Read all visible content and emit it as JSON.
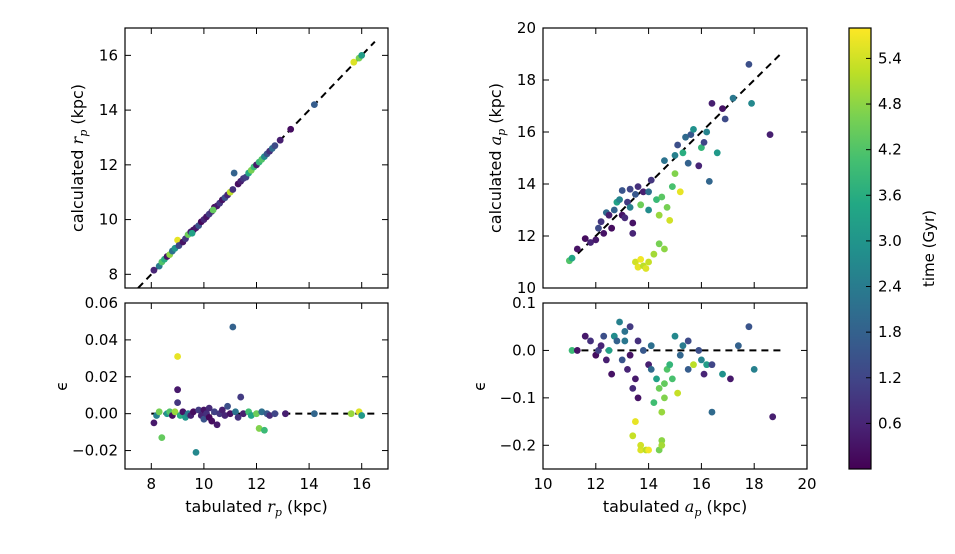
{
  "chart_data": [
    {
      "id": "rp-main",
      "type": "scatter",
      "xlim": [
        7,
        17
      ],
      "ylim": [
        7.5,
        17
      ],
      "xticks": [],
      "yticks": [
        8,
        10,
        12,
        14,
        16
      ],
      "ytick_labels": [
        "8",
        "10",
        "12",
        "14",
        "16"
      ],
      "ylabel_text": "calculated ",
      "ylabel_sym": "r",
      "ylabel_sub": "p",
      "ylabel_unit": " (kpc)",
      "reference_line": {
        "style": "dashed",
        "x": [
          7.5,
          16.5
        ],
        "y": [
          7.5,
          16.5
        ]
      },
      "points": [
        [
          8.1,
          8.15,
          0.6
        ],
        [
          8.3,
          8.3,
          2.4
        ],
        [
          8.4,
          8.45,
          4.2
        ],
        [
          8.5,
          8.55,
          3.6
        ],
        [
          8.6,
          8.65,
          0.3
        ],
        [
          8.7,
          8.72,
          4.8
        ],
        [
          8.8,
          8.85,
          2.1
        ],
        [
          8.9,
          8.95,
          3.0
        ],
        [
          9.0,
          9.25,
          5.6
        ],
        [
          9.05,
          9.05,
          1.2
        ],
        [
          9.2,
          9.18,
          0.3
        ],
        [
          9.3,
          9.3,
          0.9
        ],
        [
          9.4,
          9.45,
          4.5
        ],
        [
          9.5,
          9.55,
          0.5
        ],
        [
          9.6,
          9.62,
          0.2
        ],
        [
          9.7,
          9.7,
          0.4
        ],
        [
          9.8,
          9.78,
          1.5
        ],
        [
          9.9,
          9.92,
          0.1
        ],
        [
          10.0,
          10.0,
          0.6
        ],
        [
          10.1,
          10.1,
          0.3
        ],
        [
          10.2,
          10.2,
          1.0
        ],
        [
          10.3,
          10.3,
          0.7
        ],
        [
          10.4,
          10.45,
          0.2
        ],
        [
          10.5,
          10.5,
          0.4
        ],
        [
          10.6,
          10.6,
          0.9
        ],
        [
          10.7,
          10.72,
          0.3
        ],
        [
          10.8,
          10.8,
          1.4
        ],
        [
          10.9,
          10.9,
          0.6
        ],
        [
          11.0,
          11.0,
          5.2
        ],
        [
          11.1,
          11.1,
          0.8
        ],
        [
          11.15,
          11.7,
          1.8
        ],
        [
          11.3,
          11.3,
          0.2
        ],
        [
          11.4,
          11.4,
          0.5
        ],
        [
          11.5,
          11.5,
          0.9
        ],
        [
          11.6,
          11.55,
          1.1
        ],
        [
          11.7,
          11.7,
          3.5
        ],
        [
          11.8,
          11.8,
          4.6
        ],
        [
          11.9,
          11.92,
          3.9
        ],
        [
          12.0,
          12.0,
          0.4
        ],
        [
          12.1,
          12.1,
          3.8
        ],
        [
          12.2,
          12.2,
          4.2
        ],
        [
          12.3,
          12.3,
          2.7
        ],
        [
          12.4,
          12.4,
          1.5
        ],
        [
          12.5,
          12.5,
          0.8
        ],
        [
          12.6,
          12.6,
          2.0
        ],
        [
          12.7,
          12.7,
          1.3
        ],
        [
          12.9,
          12.9,
          0.5
        ],
        [
          13.3,
          13.3,
          0.2
        ],
        [
          14.2,
          14.2,
          1.7
        ],
        [
          15.7,
          15.75,
          5.5
        ],
        [
          15.9,
          15.9,
          4.6
        ],
        [
          16.0,
          16.0,
          3.2
        ],
        [
          10.35,
          10.35,
          4.4
        ],
        [
          9.55,
          9.5,
          3.3
        ]
      ]
    },
    {
      "id": "rp-resid",
      "type": "scatter",
      "xlim": [
        7,
        17
      ],
      "ylim": [
        -0.03,
        0.06
      ],
      "xticks": [
        8,
        10,
        12,
        14,
        16
      ],
      "xtick_labels": [
        "8",
        "10",
        "12",
        "14",
        "16"
      ],
      "yticks": [
        -0.02,
        0.0,
        0.02,
        0.04,
        0.06
      ],
      "ytick_labels": [
        "−0.02",
        "0.00",
        "0.02",
        "0.04",
        "0.06"
      ],
      "xlabel_text": "tabulated ",
      "xlabel_sym": "r",
      "xlabel_sub": "p",
      "xlabel_unit": " (kpc)",
      "ylabel_sym": "ϵ",
      "reference_line": {
        "style": "dashed",
        "x": [
          8.0,
          16.5
        ],
        "y": [
          0,
          0
        ]
      },
      "points": [
        [
          8.1,
          -0.005,
          0.4
        ],
        [
          8.2,
          -0.001,
          2.5
        ],
        [
          8.3,
          0.001,
          4.6
        ],
        [
          8.4,
          -0.013,
          4.4
        ],
        [
          8.6,
          0.0,
          3.0
        ],
        [
          8.7,
          0.001,
          4.2
        ],
        [
          8.8,
          -0.001,
          0.2
        ],
        [
          8.9,
          0.001,
          4.9
        ],
        [
          9.0,
          0.031,
          5.6
        ],
        [
          9.0,
          0.013,
          0.4
        ],
        [
          9.0,
          0.006,
          0.9
        ],
        [
          9.1,
          -0.001,
          3.6
        ],
        [
          9.2,
          0.001,
          0.3
        ],
        [
          9.3,
          -0.002,
          3.0
        ],
        [
          9.4,
          0.0,
          2.4
        ],
        [
          9.5,
          -0.001,
          0.5
        ],
        [
          9.6,
          0.001,
          0.2
        ],
        [
          9.7,
          -0.021,
          2.7
        ],
        [
          9.8,
          0.002,
          1.0
        ],
        [
          9.9,
          -0.001,
          0.6
        ],
        [
          10.0,
          -0.003,
          1.5
        ],
        [
          10.0,
          0.002,
          0.3
        ],
        [
          10.1,
          0.0,
          0.8
        ],
        [
          10.2,
          -0.002,
          0.1
        ],
        [
          10.2,
          0.003,
          0.7
        ],
        [
          10.3,
          -0.004,
          0.2
        ],
        [
          10.4,
          0.001,
          1.1
        ],
        [
          10.5,
          -0.006,
          0.4
        ],
        [
          10.6,
          0.0,
          0.9
        ],
        [
          10.7,
          0.002,
          0.5
        ],
        [
          10.8,
          -0.001,
          0.6
        ],
        [
          10.9,
          0.004,
          1.4
        ],
        [
          11.0,
          0.0,
          0.3
        ],
        [
          11.1,
          0.047,
          1.8
        ],
        [
          11.2,
          0.001,
          2.2
        ],
        [
          11.3,
          -0.002,
          0.8
        ],
        [
          11.4,
          0.009,
          1.0
        ],
        [
          11.5,
          0.0,
          0.5
        ],
        [
          11.7,
          0.001,
          4.0
        ],
        [
          11.8,
          -0.001,
          3.4
        ],
        [
          12.0,
          0.0,
          4.5
        ],
        [
          12.1,
          -0.008,
          4.7
        ],
        [
          12.2,
          0.001,
          2.1
        ],
        [
          12.3,
          -0.009,
          3.9
        ],
        [
          12.4,
          0.0,
          1.6
        ],
        [
          12.5,
          -0.001,
          0.7
        ],
        [
          12.7,
          0.0,
          1.2
        ],
        [
          13.1,
          0.0,
          0.5
        ],
        [
          14.2,
          0.0,
          1.9
        ],
        [
          15.6,
          0.0,
          4.9
        ],
        [
          15.9,
          0.001,
          5.5
        ],
        [
          16.0,
          -0.001,
          3.1
        ]
      ]
    },
    {
      "id": "ap-main",
      "type": "scatter",
      "xlim": [
        10,
        20
      ],
      "ylim": [
        10,
        20
      ],
      "xticks": [],
      "yticks": [
        10,
        12,
        14,
        16,
        18,
        20
      ],
      "ytick_labels": [
        "10",
        "12",
        "14",
        "16",
        "18",
        "20"
      ],
      "ylabel_text": "calculated ",
      "ylabel_sym": "a",
      "ylabel_sub": "p",
      "ylabel_unit": " (kpc)",
      "reference_line": {
        "style": "dashed",
        "x": [
          11,
          19
        ],
        "y": [
          11,
          19
        ]
      },
      "points": [
        [
          11.0,
          11.05,
          4.2
        ],
        [
          11.1,
          11.15,
          3.4
        ],
        [
          11.3,
          11.5,
          0.3
        ],
        [
          11.6,
          11.9,
          0.2
        ],
        [
          11.8,
          11.75,
          0.6
        ],
        [
          12.0,
          11.85,
          0.4
        ],
        [
          12.1,
          12.3,
          1.3
        ],
        [
          12.2,
          12.55,
          0.9
        ],
        [
          12.3,
          12.1,
          0.3
        ],
        [
          12.4,
          12.9,
          2.0
        ],
        [
          12.5,
          12.8,
          0.5
        ],
        [
          12.6,
          12.3,
          0.2
        ],
        [
          12.7,
          13.0,
          1.8
        ],
        [
          12.8,
          13.3,
          3.3
        ],
        [
          12.9,
          13.4,
          2.6
        ],
        [
          13.0,
          13.75,
          1.5
        ],
        [
          13.0,
          12.8,
          0.3
        ],
        [
          13.1,
          12.7,
          0.7
        ],
        [
          13.2,
          13.3,
          1.0
        ],
        [
          13.3,
          13.8,
          1.2
        ],
        [
          13.3,
          13.1,
          2.5
        ],
        [
          13.4,
          12.1,
          0.6
        ],
        [
          13.4,
          12.5,
          0.3
        ],
        [
          13.5,
          13.6,
          1.6
        ],
        [
          13.5,
          11.0,
          5.4
        ],
        [
          13.6,
          10.8,
          5.6
        ],
        [
          13.6,
          13.9,
          0.8
        ],
        [
          13.7,
          11.1,
          5.7
        ],
        [
          13.7,
          13.2,
          4.5
        ],
        [
          13.8,
          10.85,
          5.2
        ],
        [
          13.8,
          13.7,
          0.5
        ],
        [
          13.9,
          10.75,
          5.5
        ],
        [
          14.0,
          11.0,
          5.3
        ],
        [
          14.0,
          13.0,
          2.8
        ],
        [
          14.1,
          14.15,
          0.9
        ],
        [
          14.2,
          11.3,
          5.0
        ],
        [
          14.3,
          13.4,
          3.9
        ],
        [
          14.4,
          11.7,
          4.6
        ],
        [
          14.4,
          12.8,
          4.9
        ],
        [
          14.5,
          13.5,
          4.3
        ],
        [
          14.6,
          11.5,
          4.8
        ],
        [
          14.6,
          14.9,
          2.2
        ],
        [
          14.7,
          13.1,
          4.6
        ],
        [
          14.8,
          12.6,
          5.4
        ],
        [
          14.9,
          13.9,
          4.1
        ],
        [
          15.0,
          14.4,
          4.7
        ],
        [
          15.0,
          15.1,
          2.5
        ],
        [
          15.1,
          15.5,
          1.4
        ],
        [
          15.2,
          13.7,
          5.6
        ],
        [
          15.3,
          15.2,
          3.6
        ],
        [
          15.4,
          15.8,
          2.0
        ],
        [
          15.5,
          14.8,
          1.8
        ],
        [
          15.6,
          15.9,
          1.6
        ],
        [
          15.7,
          16.1,
          2.9
        ],
        [
          15.9,
          14.7,
          0.6
        ],
        [
          16.0,
          15.4,
          3.8
        ],
        [
          16.1,
          15.6,
          1.2
        ],
        [
          16.2,
          16.0,
          2.6
        ],
        [
          16.3,
          14.1,
          1.9
        ],
        [
          16.4,
          17.1,
          0.5
        ],
        [
          16.6,
          15.2,
          3.1
        ],
        [
          16.9,
          16.5,
          1.3
        ],
        [
          17.2,
          17.3,
          2.3
        ],
        [
          17.8,
          18.6,
          1.4
        ],
        [
          17.9,
          17.1,
          2.7
        ],
        [
          18.6,
          15.9,
          0.5
        ],
        [
          16.8,
          16.9,
          0.3
        ],
        [
          14.0,
          13.7,
          2.1
        ]
      ]
    },
    {
      "id": "ap-resid",
      "type": "scatter",
      "xlim": [
        10,
        20
      ],
      "ylim": [
        -0.25,
        0.1
      ],
      "xticks": [
        10,
        12,
        14,
        16,
        18,
        20
      ],
      "xtick_labels": [
        "10",
        "12",
        "14",
        "16",
        "18",
        "20"
      ],
      "yticks": [
        -0.2,
        -0.1,
        0.0,
        0.1
      ],
      "ytick_labels": [
        "−0.2",
        "−0.1",
        "0.0",
        "0.1"
      ],
      "xlabel_text": "tabulated ",
      "xlabel_sym": "a",
      "xlabel_sub": "p",
      "xlabel_unit": " (kpc)",
      "ylabel_sym": "ϵ",
      "reference_line": {
        "style": "dashed",
        "x": [
          11,
          19
        ],
        "y": [
          0,
          0
        ]
      },
      "points": [
        [
          11.1,
          0.0,
          3.9
        ],
        [
          11.3,
          0.0,
          0.3
        ],
        [
          11.6,
          0.03,
          0.4
        ],
        [
          11.8,
          0.02,
          0.8
        ],
        [
          12.0,
          -0.01,
          0.2
        ],
        [
          12.1,
          0.0,
          1.1
        ],
        [
          12.2,
          0.01,
          0.6
        ],
        [
          12.3,
          0.03,
          1.4
        ],
        [
          12.4,
          -0.02,
          0.5
        ],
        [
          12.5,
          0.0,
          3.3
        ],
        [
          12.6,
          -0.05,
          0.3
        ],
        [
          12.7,
          0.03,
          2.8
        ],
        [
          12.8,
          0.02,
          1.8
        ],
        [
          12.9,
          0.06,
          2.5
        ],
        [
          13.0,
          -0.02,
          1.5
        ],
        [
          13.1,
          0.04,
          2.2
        ],
        [
          13.2,
          -0.04,
          0.6
        ],
        [
          13.3,
          0.05,
          1.0
        ],
        [
          13.3,
          -0.01,
          0.3
        ],
        [
          13.4,
          -0.08,
          0.7
        ],
        [
          13.4,
          -0.18,
          5.3
        ],
        [
          13.5,
          -0.15,
          5.6
        ],
        [
          13.5,
          -0.06,
          0.4
        ],
        [
          13.6,
          0.02,
          0.8
        ],
        [
          13.6,
          -0.1,
          0.3
        ],
        [
          13.7,
          -0.21,
          5.5
        ],
        [
          13.7,
          -0.2,
          5.4
        ],
        [
          13.8,
          0.0,
          1.6
        ],
        [
          13.9,
          -0.21,
          5.2
        ],
        [
          14.0,
          -0.03,
          0.5
        ],
        [
          14.0,
          -0.21,
          5.7
        ],
        [
          14.1,
          0.01,
          2.1
        ],
        [
          14.2,
          -0.11,
          4.0
        ],
        [
          14.3,
          -0.06,
          3.3
        ],
        [
          14.4,
          -0.08,
          4.5
        ],
        [
          14.4,
          -0.21,
          4.6
        ],
        [
          14.5,
          -0.19,
          4.8
        ],
        [
          14.5,
          -0.2,
          5.0
        ],
        [
          14.5,
          -0.13,
          4.9
        ],
        [
          14.6,
          -0.07,
          4.4
        ],
        [
          14.6,
          -0.1,
          4.7
        ],
        [
          14.7,
          -0.04,
          4.2
        ],
        [
          14.8,
          -0.03,
          3.8
        ],
        [
          14.9,
          -0.06,
          4.1
        ],
        [
          15.0,
          0.03,
          2.7
        ],
        [
          15.1,
          -0.09,
          5.3
        ],
        [
          15.2,
          -0.01,
          1.9
        ],
        [
          15.3,
          0.01,
          2.4
        ],
        [
          15.5,
          0.02,
          1.3
        ],
        [
          15.5,
          -0.04,
          1.7
        ],
        [
          15.7,
          -0.03,
          5.2
        ],
        [
          15.9,
          0.0,
          1.4
        ],
        [
          16.0,
          -0.02,
          2.6
        ],
        [
          16.1,
          -0.05,
          0.6
        ],
        [
          16.2,
          -0.03,
          3.2
        ],
        [
          16.4,
          -0.13,
          2.0
        ],
        [
          16.4,
          -0.03,
          1.2
        ],
        [
          16.8,
          -0.05,
          2.9
        ],
        [
          17.1,
          -0.06,
          0.4
        ],
        [
          17.4,
          0.01,
          1.8
        ],
        [
          17.8,
          0.05,
          1.5
        ],
        [
          18.0,
          -0.04,
          2.5
        ],
        [
          18.7,
          -0.14,
          0.5
        ],
        [
          14.1,
          -0.04,
          2.0
        ],
        [
          13.1,
          0.02,
          2.3
        ]
      ]
    }
  ],
  "colorbar": {
    "label": "time (Gyr)",
    "vmin": 0.0,
    "vmax": 5.8,
    "ticks": [
      0.6,
      1.2,
      1.8,
      2.4,
      3.0,
      3.6,
      4.2,
      4.8,
      5.4
    ],
    "tick_labels": [
      "0.6",
      "1.2",
      "1.8",
      "2.4",
      "3.0",
      "3.6",
      "4.2",
      "4.8",
      "5.4"
    ],
    "colormap": "viridis",
    "colormap_stops": [
      "#440154",
      "#482475",
      "#414487",
      "#355f8d",
      "#2a788e",
      "#21918c",
      "#22a884",
      "#44bf70",
      "#7ad151",
      "#bddf26",
      "#fde725"
    ]
  }
}
